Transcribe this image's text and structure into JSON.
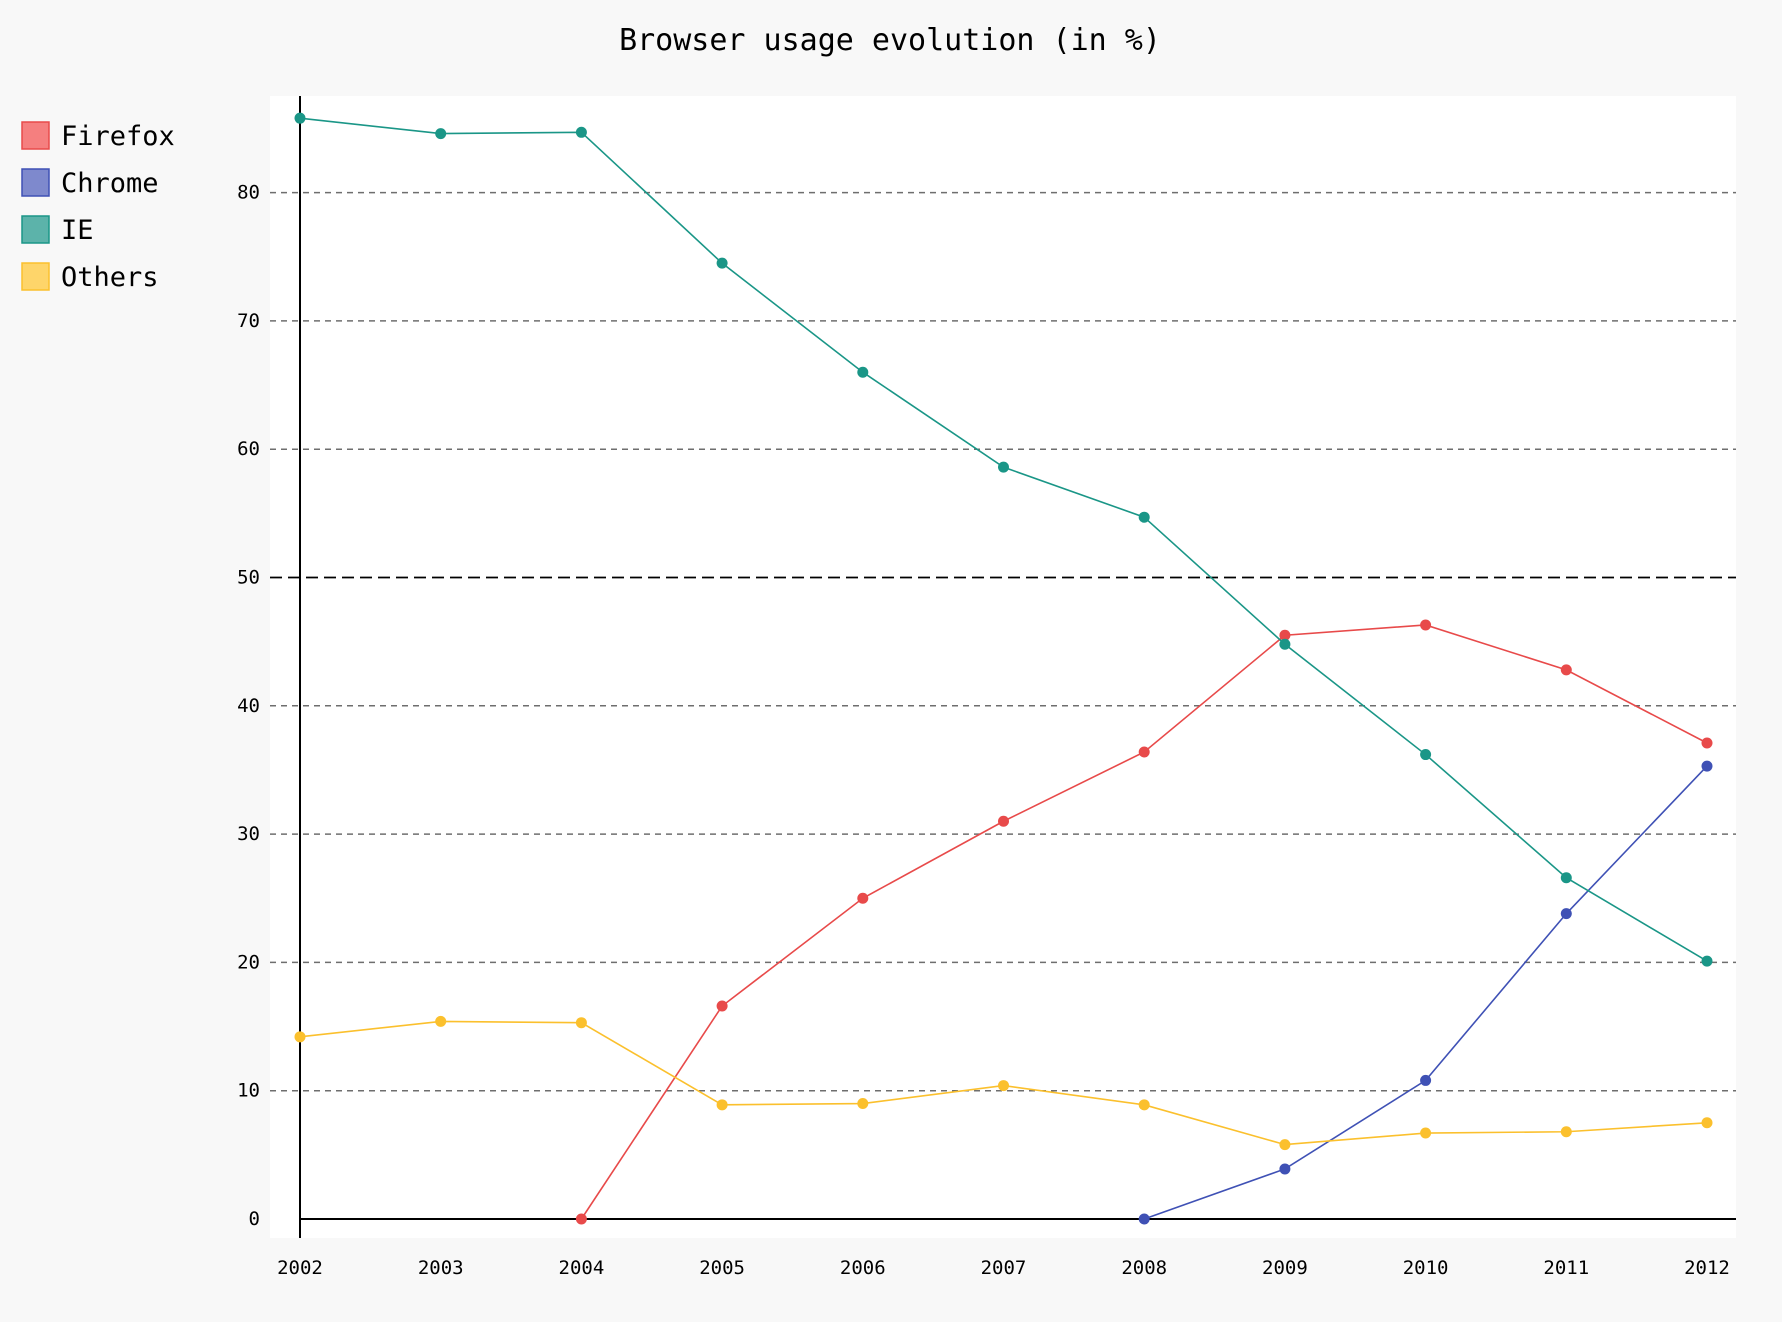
{
  "chart_data": {
    "type": "line",
    "title": "Browser usage evolution (in %)",
    "xlabel": "",
    "ylabel": "",
    "categories": [
      "2002",
      "2003",
      "2004",
      "2005",
      "2006",
      "2007",
      "2008",
      "2009",
      "2010",
      "2011",
      "2012"
    ],
    "y_ticks": [
      "0",
      "10",
      "20",
      "30",
      "40",
      "50",
      "60",
      "70",
      "80"
    ],
    "ylim": [
      0,
      88
    ],
    "grid": "horizontal dashed",
    "legend_position": "top-left",
    "series": [
      {
        "name": "Firefox",
        "color": "#e84a4a",
        "legend_fill": "#f57f7f",
        "values": [
          null,
          null,
          0,
          16.6,
          25,
          31,
          36.4,
          45.5,
          46.3,
          42.8,
          37.1
        ]
      },
      {
        "name": "Chrome",
        "color": "#3f51b5",
        "legend_fill": "#7e89cd",
        "values": [
          null,
          null,
          null,
          null,
          null,
          null,
          0,
          3.9,
          10.8,
          23.8,
          35.3
        ]
      },
      {
        "name": "IE",
        "color": "#1a9687",
        "legend_fill": "#5cb3aa",
        "values": [
          85.8,
          84.6,
          84.7,
          74.5,
          66,
          58.6,
          54.7,
          44.8,
          36.2,
          26.6,
          20.1
        ]
      },
      {
        "name": "Others",
        "color": "#fbc02d",
        "legend_fill": "#fed56a",
        "values": [
          14.2,
          15.4,
          15.3,
          8.9,
          9,
          10.4,
          8.9,
          5.8,
          6.7,
          6.8,
          7.5
        ]
      }
    ]
  }
}
